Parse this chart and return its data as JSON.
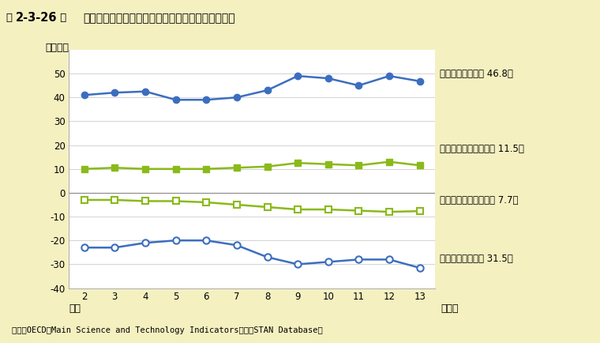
{
  "years": [
    2,
    3,
    4,
    5,
    6,
    7,
    8,
    9,
    10,
    11,
    12,
    13
  ],
  "export_all": [
    41,
    42,
    42.5,
    39,
    39,
    40,
    43,
    49,
    48,
    45,
    49,
    46.8
  ],
  "export_hi": [
    10,
    10.5,
    10,
    10,
    10,
    10.5,
    11,
    12.5,
    12,
    11.5,
    13,
    11.5
  ],
  "import_hi": [
    -3,
    -3,
    -3.5,
    -3.5,
    -4,
    -5,
    -6,
    -7,
    -7,
    -7.5,
    -8,
    -7.7
  ],
  "import_all": [
    -23,
    -23,
    -21,
    -20,
    -20,
    -22,
    -27,
    -30,
    -29,
    -28,
    -28,
    -31.5
  ],
  "export_all_label": "全製造業輸出額（ 46.8）",
  "export_hi_label": "ハイテク産業輸出額（ 11.5）",
  "import_hi_label": "ハイテク産業輸入額（ 7.7）",
  "import_all_label": "全製造業輸入額（ 31.5）",
  "ylabel": "（兆円）",
  "xlabel_main": "平成",
  "xlabel_unit": "（年）",
  "ylim": [
    -40,
    60
  ],
  "yticks": [
    -40,
    -30,
    -20,
    -10,
    0,
    10,
    20,
    30,
    40,
    50
  ],
  "title_bold": "2-3-26",
  "title_zu": "図",
  "title_main": "我が国の全製造業・ハイテク産業の輸出入額の推移",
  "source": "資料：OECD「Main Science and Technology Indicators」、「STAN Database」",
  "bg_color": "#f5f0c0",
  "header_color": "#aec6e0",
  "plot_bg": "#ffffff",
  "blue_color": "#3c6ebf",
  "green_color": "#8aba1a",
  "line_width": 1.8,
  "marker_size": 6
}
